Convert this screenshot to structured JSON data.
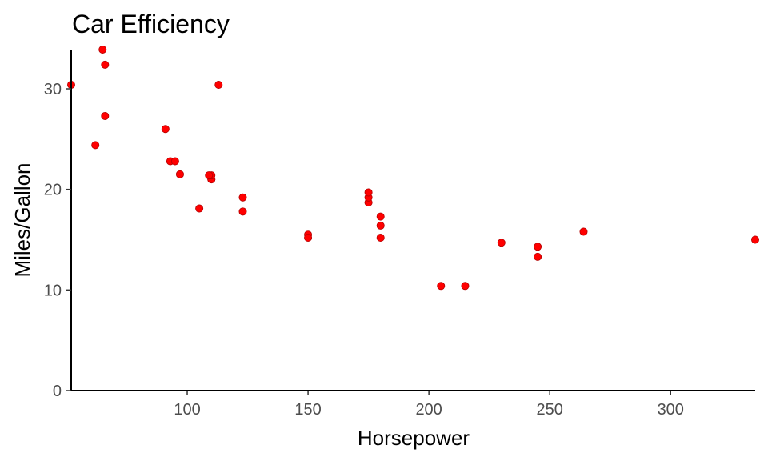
{
  "chart_data": {
    "type": "scatter",
    "title": "Car Efficiency",
    "xlabel": "Horsepower",
    "ylabel": "Miles/Gallon",
    "xlim": [
      52,
      335
    ],
    "ylim": [
      0,
      33.9
    ],
    "x_ticks": [
      100,
      150,
      200,
      250,
      300
    ],
    "y_ticks": [
      0,
      10,
      20,
      30
    ],
    "grid": false,
    "legend": "none",
    "point_color": "#ff0000",
    "series": [
      {
        "points": [
          {
            "x": 110,
            "y": 21.0
          },
          {
            "x": 110,
            "y": 21.0
          },
          {
            "x": 93,
            "y": 22.8
          },
          {
            "x": 110,
            "y": 21.4
          },
          {
            "x": 175,
            "y": 18.7
          },
          {
            "x": 105,
            "y": 18.1
          },
          {
            "x": 245,
            "y": 14.3
          },
          {
            "x": 62,
            "y": 24.4
          },
          {
            "x": 95,
            "y": 22.8
          },
          {
            "x": 123,
            "y": 19.2
          },
          {
            "x": 123,
            "y": 17.8
          },
          {
            "x": 180,
            "y": 16.4
          },
          {
            "x": 180,
            "y": 17.3
          },
          {
            "x": 180,
            "y": 15.2
          },
          {
            "x": 205,
            "y": 10.4
          },
          {
            "x": 215,
            "y": 10.4
          },
          {
            "x": 230,
            "y": 14.7
          },
          {
            "x": 66,
            "y": 32.4
          },
          {
            "x": 52,
            "y": 30.4
          },
          {
            "x": 65,
            "y": 33.9
          },
          {
            "x": 97,
            "y": 21.5
          },
          {
            "x": 150,
            "y": 15.5
          },
          {
            "x": 150,
            "y": 15.2
          },
          {
            "x": 245,
            "y": 13.3
          },
          {
            "x": 175,
            "y": 19.2
          },
          {
            "x": 66,
            "y": 27.3
          },
          {
            "x": 91,
            "y": 26.0
          },
          {
            "x": 113,
            "y": 30.4
          },
          {
            "x": 264,
            "y": 15.8
          },
          {
            "x": 175,
            "y": 19.7
          },
          {
            "x": 335,
            "y": 15.0
          },
          {
            "x": 109,
            "y": 21.4
          }
        ]
      }
    ]
  }
}
